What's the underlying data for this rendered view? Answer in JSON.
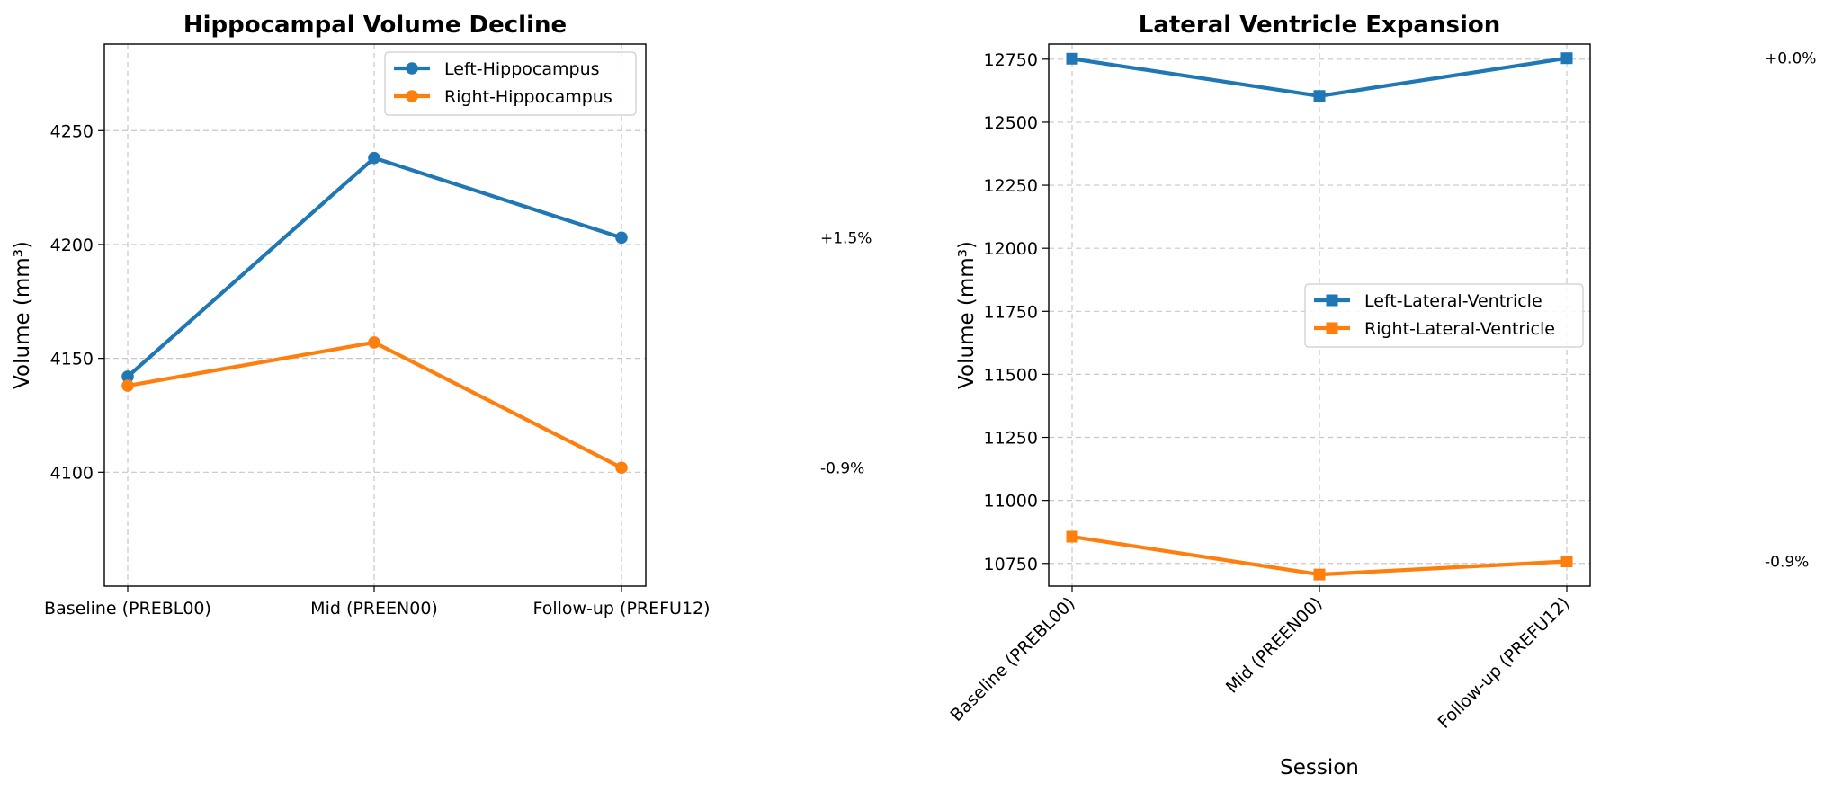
{
  "chart_data": [
    {
      "type": "line",
      "title": "Hippocampal Volume Decline",
      "xlabel": "",
      "ylabel": "Volume (mm³)",
      "categories": [
        "Baseline (PREBL00)",
        "Mid (PREEN00)",
        "Follow-up (PREFU12)"
      ],
      "ylim": [
        4050,
        4288
      ],
      "yticks": [
        4100,
        4150,
        4200,
        4250
      ],
      "grid": true,
      "marker": "circle",
      "legend": "top-right",
      "series": [
        {
          "name": "Left-Hippocampus",
          "color": "#1f77b4",
          "values": [
            4142,
            4238,
            4203
          ],
          "change_label": "+1.5%"
        },
        {
          "name": "Right-Hippocampus",
          "color": "#ff7f0e",
          "values": [
            4138,
            4157,
            4102
          ],
          "change_label": "-0.9%"
        }
      ]
    },
    {
      "type": "line",
      "title": "Lateral Ventricle Expansion",
      "xlabel": "Session",
      "ylabel": "Volume (mm³)",
      "categories": [
        "Baseline (PREBL00)",
        "Mid (PREEN00)",
        "Follow-up (PREFU12)"
      ],
      "ylim": [
        10660,
        12810
      ],
      "yticks": [
        10750,
        11000,
        11250,
        11500,
        11750,
        12000,
        12250,
        12500,
        12750
      ],
      "grid": true,
      "marker": "square",
      "legend": "center-right",
      "rotated_xticks": true,
      "series": [
        {
          "name": "Left-Lateral-Ventricle",
          "color": "#1f77b4",
          "values": [
            12752,
            12604,
            12754
          ],
          "change_label": "+0.0%"
        },
        {
          "name": "Right-Lateral-Ventricle",
          "color": "#ff7f0e",
          "values": [
            10856,
            10706,
            10758
          ],
          "change_label": "-0.9%"
        }
      ]
    }
  ]
}
